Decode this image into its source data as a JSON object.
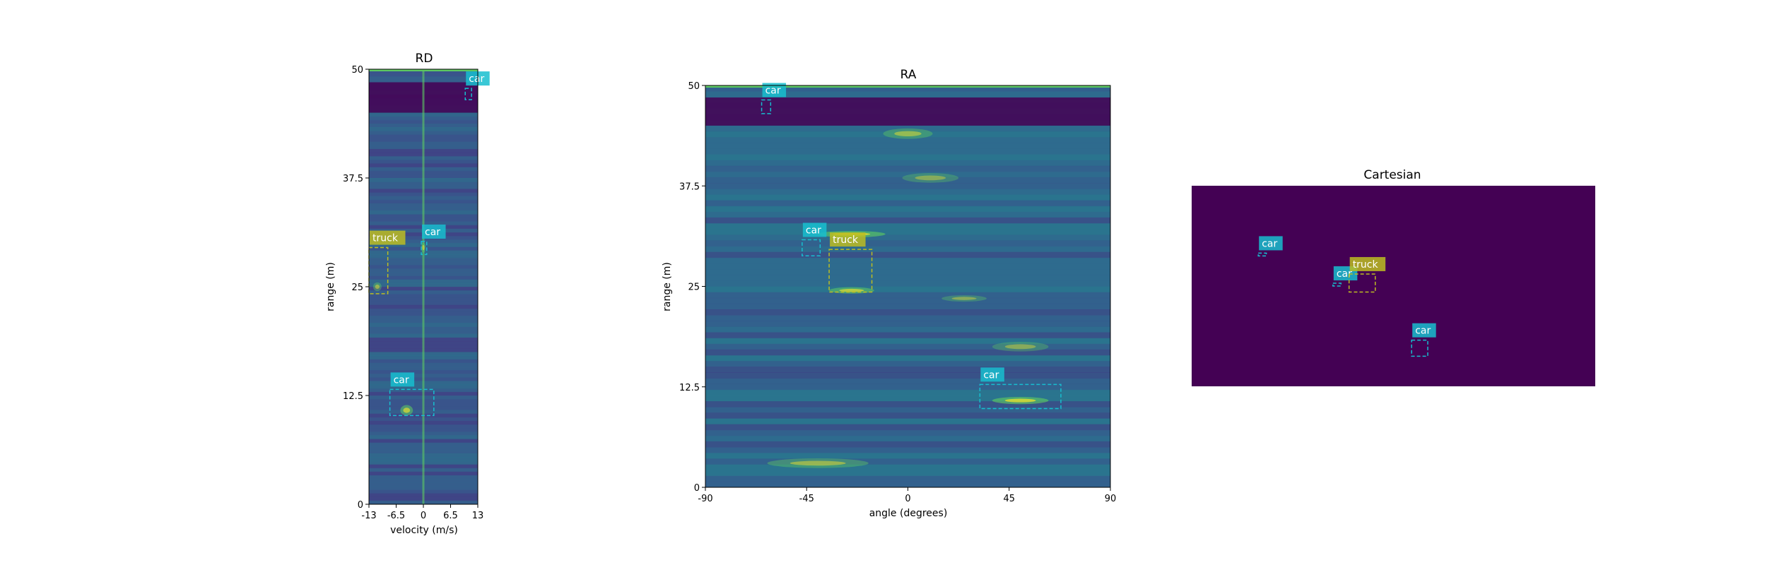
{
  "colors": {
    "viridis_dark": "#440154",
    "viridis_blue": "#3b528b",
    "viridis_teal": "#21918c",
    "viridis_green": "#5ec962",
    "viridis_yellow": "#fde725",
    "car_color": "#17becf",
    "truck_color": "#bcbd22",
    "label_text": "#ffffff"
  },
  "chart_data": [
    {
      "type": "heatmap",
      "title": "RD",
      "xlabel": "velocity (m/s)",
      "ylabel": "range (m)",
      "xlim": [
        -13,
        13
      ],
      "ylim": [
        0,
        50
      ],
      "xticks": [
        -13,
        -6.5,
        0,
        6.5,
        13
      ],
      "xtick_labels": [
        "-13",
        "-6.5",
        "0",
        "6.5",
        "13"
      ],
      "yticks": [
        0,
        12.5,
        25,
        37.5,
        50
      ],
      "ytick_labels": [
        "0",
        "12.5",
        "25",
        "37.5",
        "50"
      ],
      "features": [
        {
          "x": 0,
          "y": 25,
          "w": 0.35,
          "h": 50,
          "strength": 0.6,
          "kind": "line-v"
        },
        {
          "x": -4,
          "y": 10.8,
          "w": 3,
          "h": 1.2,
          "strength": 0.8,
          "kind": "blob"
        },
        {
          "x": -11,
          "y": 25,
          "w": 2,
          "h": 1,
          "strength": 0.6,
          "kind": "blob"
        },
        {
          "x": 0,
          "y": 29.5,
          "w": 1,
          "h": 1.2,
          "strength": 0.7,
          "kind": "blob"
        }
      ],
      "detections": [
        {
          "label": "car",
          "x0": 10,
          "x1": 11.5,
          "y0": 46.5,
          "y1": 47.8
        },
        {
          "label": "truck",
          "x0": -13,
          "x1": -8.5,
          "y0": 24.2,
          "y1": 29.5
        },
        {
          "label": "car",
          "x0": -0.5,
          "x1": 0.8,
          "y0": 28.7,
          "y1": 30.2
        },
        {
          "label": "car",
          "x0": -8,
          "x1": 2.5,
          "y0": 10.2,
          "y1": 13.2
        }
      ]
    },
    {
      "type": "heatmap",
      "title": "RA",
      "xlabel": "angle (degrees)",
      "ylabel": "range (m)",
      "xlim": [
        -90,
        90
      ],
      "ylim": [
        0,
        50
      ],
      "xticks": [
        -90,
        -45,
        0,
        45,
        90
      ],
      "xtick_labels": [
        "-90",
        "-45",
        "0",
        "45",
        "90"
      ],
      "yticks": [
        0,
        12.5,
        25,
        37.5,
        50
      ],
      "ytick_labels": [
        "0",
        "12.5",
        "25",
        "37.5",
        "50"
      ],
      "features": [
        {
          "x": -25,
          "y": 31.5,
          "w": 30,
          "h": 0.8,
          "strength": 0.9,
          "kind": "blob"
        },
        {
          "x": 50,
          "y": 10.8,
          "w": 25,
          "h": 0.9,
          "strength": 0.9,
          "kind": "blob"
        },
        {
          "x": -25,
          "y": 24.5,
          "w": 20,
          "h": 0.8,
          "strength": 0.8,
          "kind": "blob"
        },
        {
          "x": 0,
          "y": 44,
          "w": 22,
          "h": 1.3,
          "strength": 0.6,
          "kind": "blob"
        },
        {
          "x": 10,
          "y": 38.5,
          "w": 25,
          "h": 1.2,
          "strength": 0.5,
          "kind": "blob"
        },
        {
          "x": -40,
          "y": 3,
          "w": 45,
          "h": 1.2,
          "strength": 0.6,
          "kind": "blob"
        },
        {
          "x": 50,
          "y": 17.5,
          "w": 25,
          "h": 1.2,
          "strength": 0.5,
          "kind": "blob"
        },
        {
          "x": 25,
          "y": 23.5,
          "w": 20,
          "h": 0.8,
          "strength": 0.5,
          "kind": "blob"
        }
      ],
      "detections": [
        {
          "label": "car",
          "x0": -65,
          "x1": -61,
          "y0": 46.5,
          "y1": 48.2
        },
        {
          "label": "car",
          "x0": -47,
          "x1": -39,
          "y0": 28.8,
          "y1": 30.8
        },
        {
          "label": "truck",
          "x0": -35,
          "x1": -16,
          "y0": 24.3,
          "y1": 29.6
        },
        {
          "label": "car",
          "x0": 32,
          "x1": 68,
          "y0": 9.8,
          "y1": 12.8
        }
      ]
    },
    {
      "type": "heatmap",
      "title": "Cartesian",
      "xlabel": "",
      "ylabel": "",
      "xlim": [
        0,
        100
      ],
      "ylim": [
        0,
        50
      ],
      "xticks": [],
      "yticks": [],
      "features": [],
      "detections": [
        {
          "label": "car",
          "x0": 16.5,
          "x1": 18.5,
          "y0": 32.5,
          "y1": 33.2
        },
        {
          "label": "car",
          "x0": 35,
          "x1": 37,
          "y0": 25,
          "y1": 25.7
        },
        {
          "label": "truck",
          "x0": 39,
          "x1": 45.5,
          "y0": 23.5,
          "y1": 28
        },
        {
          "label": "car",
          "x0": 54.5,
          "x1": 58.5,
          "y0": 7.5,
          "y1": 11.5
        }
      ]
    }
  ]
}
